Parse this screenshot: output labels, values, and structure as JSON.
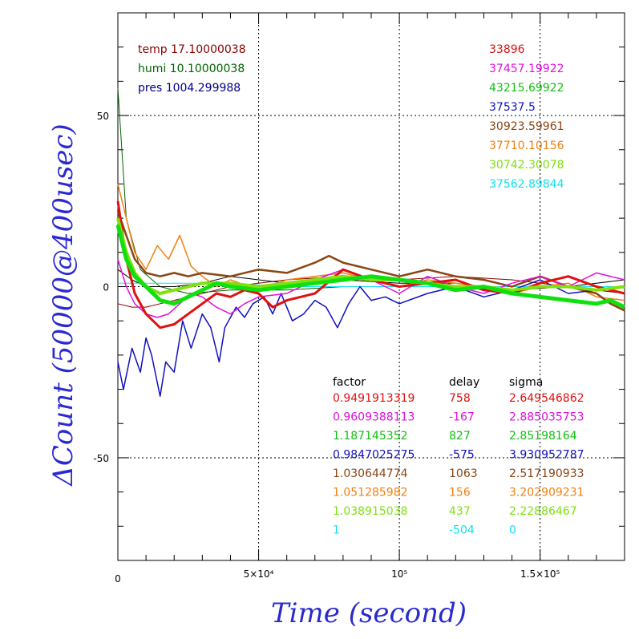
{
  "chart_data": {
    "type": "line",
    "xlabel": "Time (second)",
    "ylabel": "ΔCount (50000@400usec)",
    "xlim": [
      0,
      180000
    ],
    "ylim": [
      -80,
      80
    ],
    "grid": true,
    "x_tick_labels": [
      {
        "value": 0,
        "label": "0"
      },
      {
        "value": 50000,
        "label": "5×10⁴"
      },
      {
        "value": 100000,
        "label": "10⁵"
      },
      {
        "value": 150000,
        "label": "1.5×10⁵"
      }
    ],
    "y_tick_labels": [
      {
        "value": 50,
        "label": "50"
      },
      {
        "value": 0,
        "label": "0"
      },
      {
        "value": -50,
        "label": "-50"
      }
    ],
    "env_info": [
      {
        "text": "temp 17.10000038",
        "color": "#8b0000"
      },
      {
        "text": "humi 10.10000038",
        "color": "#006400"
      },
      {
        "text": "pres 1004.299988",
        "color": "#00008b"
      }
    ],
    "offsets": [
      {
        "text": "33896",
        "color": "#e01010"
      },
      {
        "text": "37457.19922",
        "color": "#e010e0"
      },
      {
        "text": "43215.69922",
        "color": "#10c010"
      },
      {
        "text": "37537.5",
        "color": "#1010c0"
      },
      {
        "text": "30923.59961",
        "color": "#8b4513"
      },
      {
        "text": "37710.10156",
        "color": "#f08010"
      },
      {
        "text": "30742.30078",
        "color": "#80e010"
      },
      {
        "text": "37562.89844",
        "color": "#10e0f0"
      }
    ],
    "table_headers": [
      "factor",
      "delay",
      "sigma"
    ],
    "table_rows": [
      {
        "factor": "0.9491913319",
        "delay": "758",
        "sigma": "2.649546862",
        "color": "#e01010"
      },
      {
        "factor": "0.9609388113",
        "delay": "-167",
        "sigma": "2.885035753",
        "color": "#e010e0"
      },
      {
        "factor": "1.187145352",
        "delay": "827",
        "sigma": "2.85198164",
        "color": "#10c010"
      },
      {
        "factor": "0.9847025275",
        "delay": "-575",
        "sigma": "3.930952787",
        "color": "#1010c0"
      },
      {
        "factor": "1.030644774",
        "delay": "1063",
        "sigma": "2.517190933",
        "color": "#8b4513"
      },
      {
        "factor": "1.051285982",
        "delay": "156",
        "sigma": "3.202909231",
        "color": "#f08010"
      },
      {
        "factor": "1.038915038",
        "delay": "437",
        "sigma": "2.22886467",
        "color": "#80e010"
      },
      {
        "factor": "1",
        "delay": "-504",
        "sigma": "0",
        "color": "#10e0f0"
      }
    ],
    "series": [
      {
        "color": "#8b0000",
        "width": 1,
        "x": [
          0,
          5000,
          10000,
          15000,
          20000,
          30000,
          40000,
          50000,
          60000,
          80000,
          100000,
          120000,
          140000,
          160000,
          180000
        ],
        "y": [
          -5,
          -6,
          -6,
          -5,
          -4,
          -2,
          0,
          1,
          2,
          3,
          2,
          3,
          2,
          0,
          -2
        ]
      },
      {
        "color": "#006400",
        "width": 1,
        "x": [
          0,
          3000,
          8000,
          15000,
          25000,
          40000,
          60000,
          80000,
          100000,
          120000,
          140000,
          160000,
          180000
        ],
        "y": [
          58,
          20,
          5,
          0,
          -2,
          -1,
          -1,
          0,
          0,
          0,
          -1,
          0,
          0
        ]
      },
      {
        "color": "#000000",
        "width": 1,
        "x": [
          0,
          5000,
          10000,
          20000,
          30000,
          40000,
          50000,
          60000,
          80000,
          100000,
          120000,
          140000,
          160000,
          180000
        ],
        "y": [
          5,
          2,
          0,
          0,
          1,
          3,
          2,
          1,
          2,
          1,
          1,
          -1,
          0,
          2
        ]
      },
      {
        "color": "#10e0f0",
        "width": 1,
        "x": [
          0,
          20000,
          40000,
          60000,
          80000,
          100000,
          120000,
          140000,
          160000,
          180000
        ],
        "y": [
          1,
          1,
          1,
          0,
          0,
          0,
          0,
          0,
          0,
          0
        ]
      },
      {
        "color": "#f08010",
        "width": 1.5,
        "x": [
          0,
          3000,
          6000,
          10000,
          14000,
          18000,
          22000,
          26000,
          30000,
          35000,
          40000,
          50000,
          60000,
          70000,
          80000,
          90000,
          100000,
          110000,
          120000,
          130000,
          140000,
          150000,
          160000,
          170000,
          180000
        ],
        "y": [
          30,
          20,
          10,
          5,
          12,
          8,
          15,
          6,
          3,
          0,
          2,
          -1,
          2,
          3,
          4,
          2,
          0,
          2,
          1,
          0,
          -2,
          0,
          1,
          -3,
          -4
        ]
      },
      {
        "color": "#8b4513",
        "width": 2.5,
        "x": [
          0,
          3000,
          6000,
          10000,
          15000,
          20000,
          25000,
          30000,
          40000,
          50000,
          60000,
          70000,
          75000,
          80000,
          90000,
          100000,
          110000,
          120000,
          130000,
          140000,
          150000,
          160000,
          170000,
          175000,
          180000
        ],
        "y": [
          22,
          15,
          8,
          4,
          3,
          4,
          3,
          4,
          3,
          5,
          4,
          7,
          9,
          7,
          5,
          3,
          5,
          3,
          2,
          0,
          3,
          0,
          -2,
          -5,
          -7
        ]
      },
      {
        "color": "#1010c0",
        "width": 1.5,
        "x": [
          0,
          2000,
          5000,
          8000,
          10000,
          12000,
          15000,
          17000,
          20000,
          23000,
          26000,
          30000,
          33000,
          36000,
          38000,
          42000,
          45000,
          48000,
          52000,
          55000,
          58000,
          62000,
          66000,
          70000,
          74000,
          78000,
          82000,
          86000,
          90000,
          95000,
          100000,
          110000,
          120000,
          130000,
          140000,
          150000,
          160000,
          170000,
          180000
        ],
        "y": [
          -22,
          -30,
          -18,
          -25,
          -15,
          -20,
          -32,
          -22,
          -25,
          -10,
          -18,
          -8,
          -12,
          -22,
          -12,
          -6,
          -9,
          -5,
          -3,
          -8,
          -2,
          -10,
          -8,
          -4,
          -6,
          -12,
          -5,
          0,
          -4,
          -3,
          -5,
          -2,
          0,
          -3,
          -1,
          2,
          -2,
          -1,
          0
        ]
      },
      {
        "color": "#e010e0",
        "width": 1.5,
        "x": [
          0,
          3000,
          6000,
          10000,
          14000,
          18000,
          22000,
          26000,
          30000,
          35000,
          40000,
          45000,
          50000,
          60000,
          70000,
          80000,
          90000,
          100000,
          110000,
          120000,
          130000,
          140000,
          150000,
          160000,
          170000,
          180000
        ],
        "y": [
          8,
          0,
          -5,
          -8,
          -9,
          -8,
          -5,
          -2,
          -3,
          -6,
          -8,
          -5,
          -3,
          -2,
          2,
          5,
          2,
          -2,
          3,
          0,
          -2,
          1,
          3,
          0,
          4,
          2
        ]
      },
      {
        "color": "#e01010",
        "width": 3,
        "x": [
          0,
          3000,
          6000,
          10000,
          15000,
          20000,
          25000,
          30000,
          35000,
          40000,
          45000,
          50000,
          55000,
          60000,
          70000,
          80000,
          90000,
          100000,
          110000,
          120000,
          130000,
          140000,
          150000,
          160000,
          170000,
          180000
        ],
        "y": [
          25,
          8,
          -2,
          -8,
          -12,
          -11,
          -8,
          -5,
          -2,
          -3,
          -1,
          -2,
          -6,
          -4,
          -2,
          5,
          2,
          0,
          1,
          2,
          -1,
          -2,
          1,
          3,
          0,
          -2
        ]
      },
      {
        "color": "#80e010",
        "width": 4,
        "x": [
          0,
          3000,
          6000,
          10000,
          15000,
          20000,
          25000,
          30000,
          40000,
          50000,
          60000,
          70000,
          80000,
          90000,
          100000,
          110000,
          120000,
          130000,
          140000,
          150000,
          160000,
          170000,
          180000
        ],
        "y": [
          20,
          10,
          4,
          0,
          -2,
          -1,
          0,
          1,
          1,
          0,
          1,
          2,
          3,
          2,
          2,
          1,
          0,
          0,
          -1,
          0,
          0,
          -1,
          0
        ]
      },
      {
        "color": "#10e010",
        "width": 5,
        "x": [
          0,
          3000,
          6000,
          10000,
          15000,
          20000,
          25000,
          30000,
          35000,
          40000,
          50000,
          60000,
          70000,
          80000,
          90000,
          100000,
          110000,
          120000,
          130000,
          140000,
          150000,
          160000,
          170000,
          175000,
          180000
        ],
        "y": [
          18,
          8,
          3,
          0,
          -4,
          -5,
          -3,
          -1,
          1,
          0,
          -1,
          0,
          1,
          2,
          3,
          2,
          1,
          -1,
          0,
          -2,
          -3,
          -4,
          -5,
          -4,
          -6
        ]
      }
    ]
  }
}
